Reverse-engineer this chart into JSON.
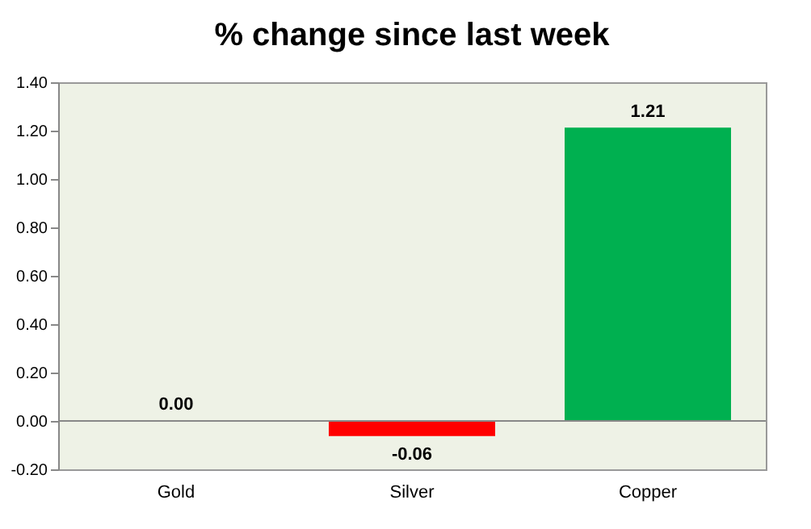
{
  "chart_data": {
    "type": "bar",
    "title": "% change since last week",
    "categories": [
      "Gold",
      "Silver",
      "Copper"
    ],
    "values": [
      0.0,
      -0.06,
      1.21
    ],
    "colors": [
      "#00b050",
      "#ff0000",
      "#00b050"
    ],
    "value_labels": [
      "0.00",
      "-0.06",
      "1.21"
    ],
    "ylim": [
      -0.2,
      1.4
    ],
    "yticks": [
      {
        "value": -0.2,
        "label": "-0.20"
      },
      {
        "value": 0,
        "label": "0.00"
      },
      {
        "value": 0.2,
        "label": "0.20"
      },
      {
        "value": 0.4,
        "label": "0.40"
      },
      {
        "value": 0.6,
        "label": "0.60"
      },
      {
        "value": 0.8,
        "label": "0.80"
      },
      {
        "value": 1.0,
        "label": "1.00"
      },
      {
        "value": 1.2,
        "label": "1.20"
      },
      {
        "value": 1.4,
        "label": "1.40"
      }
    ]
  }
}
